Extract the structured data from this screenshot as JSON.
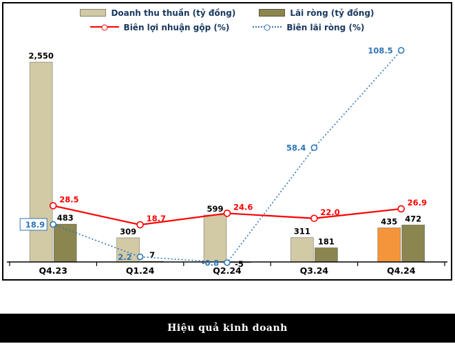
{
  "title_bar": {
    "text": "Hiệu quả kinh doanh"
  },
  "colors": {
    "revenue_bar": "#d2c9a5",
    "revenue_bar_highlight": "#f4953c",
    "net_profit_bar": "#8b8650",
    "gross_margin_line": "#ff0000",
    "net_margin_line": "#2e75b6",
    "legend_text": "#17375e",
    "title_bar_bg": "#000000",
    "title_bar_text": "#ffffff"
  },
  "chart_data": {
    "type": "bar",
    "subtype": "combo-bar-line",
    "title": "Hiệu quả kinh doanh",
    "legend_position": "top",
    "grid": false,
    "categories": [
      "Q4.23",
      "Q1.24",
      "Q2.24",
      "Q3.24",
      "Q4.24"
    ],
    "series": [
      {
        "name": "Doanh thu thuần (tỷ đồng)",
        "type": "bar",
        "values": [
          2550,
          309,
          599,
          311,
          435
        ],
        "labels": [
          "2,550",
          "309",
          "599",
          "311",
          "435"
        ],
        "color": "#d2c9a5",
        "highlight": {
          "index": 4,
          "color": "#f4953c"
        }
      },
      {
        "name": "Lãi ròng (tỷ đồng)",
        "type": "bar",
        "values": [
          483,
          7,
          -5,
          181,
          472
        ],
        "labels": [
          "483",
          "7",
          "-5",
          "181",
          "472"
        ],
        "color": "#8b8650"
      },
      {
        "name": "Biên lợi nhuận gộp (%)",
        "type": "line",
        "values": [
          28.5,
          18.7,
          24.6,
          22.0,
          26.9
        ],
        "labels": [
          "28.5",
          "18.7",
          "24.6",
          "22.0",
          "26.9"
        ],
        "color": "#ff0000",
        "label_side": "right"
      },
      {
        "name": "Biên lãi ròng (%)",
        "type": "line",
        "values": [
          18.9,
          2.2,
          -0.8,
          58.4,
          108.5
        ],
        "labels": [
          "18.9",
          "2.2",
          "-0.8",
          "58.4",
          "108.5"
        ],
        "color": "#2e75b6",
        "dash": "dotted",
        "label_side": "left",
        "boxed_labels": [
          0
        ]
      }
    ],
    "value_axis": {
      "visible": false,
      "bar_range": [
        0,
        2550
      ],
      "percent_range": [
        -5,
        115
      ]
    }
  }
}
